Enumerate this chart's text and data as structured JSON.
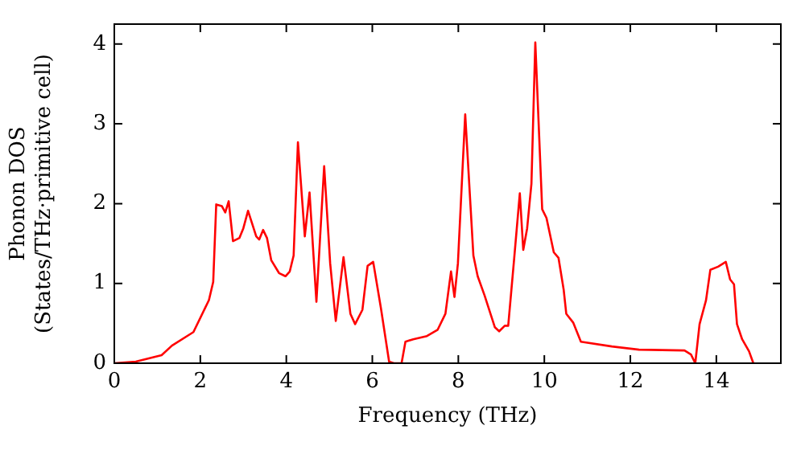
{
  "chart_data": {
    "type": "line",
    "xlabel": "Frequency (THz)",
    "ylabel": "Phonon DOS\n(States/THz·primitive cell)",
    "xlim": [
      0,
      15.5
    ],
    "ylim": [
      0,
      4.25
    ],
    "xticks": [
      0,
      2,
      4,
      6,
      8,
      10,
      12,
      14
    ],
    "yticks": [
      0,
      1,
      2,
      3,
      4
    ],
    "grid": false,
    "legend": false,
    "marker": "none",
    "line_style": "solid",
    "series": [
      {
        "color": "#ff0000",
        "x": [
          0,
          0.5,
          1.1,
          1.34,
          1.84,
          2.2,
          2.3,
          2.37,
          2.5,
          2.58,
          2.66,
          2.76,
          2.91,
          3.0,
          3.11,
          3.3,
          3.37,
          3.46,
          3.55,
          3.65,
          3.83,
          3.98,
          4.08,
          4.17,
          4.27,
          4.43,
          4.54,
          4.7,
          4.88,
          5.02,
          5.15,
          5.33,
          5.49,
          5.6,
          5.77,
          5.89,
          6.02,
          6.2,
          6.39,
          6.5,
          6.68,
          6.77,
          6.95,
          7.27,
          7.52,
          7.7,
          7.83,
          7.91,
          7.99,
          8.16,
          8.35,
          8.45,
          8.61,
          8.85,
          8.95,
          9.08,
          9.16,
          9.3,
          9.43,
          9.51,
          9.6,
          9.7,
          9.79,
          9.95,
          10.05,
          10.22,
          10.33,
          10.45,
          10.51,
          10.67,
          10.85,
          11.57,
          12.2,
          13.26,
          13.41,
          13.51,
          13.61,
          13.76,
          13.86,
          14.04,
          14.22,
          14.32,
          14.41,
          14.48,
          14.6,
          14.76,
          14.86
        ],
        "values": [
          0,
          0.02,
          0.1,
          0.22,
          0.39,
          0.79,
          1.02,
          1.99,
          1.97,
          1.89,
          2.03,
          1.53,
          1.57,
          1.69,
          1.91,
          1.59,
          1.55,
          1.67,
          1.57,
          1.29,
          1.13,
          1.09,
          1.15,
          1.35,
          2.77,
          1.59,
          2.14,
          0.77,
          2.47,
          1.25,
          0.53,
          1.33,
          0.62,
          0.49,
          0.67,
          1.22,
          1.27,
          0.69,
          0.02,
          0,
          0,
          0.27,
          0.3,
          0.34,
          0.42,
          0.62,
          1.15,
          0.83,
          1.25,
          3.12,
          1.35,
          1.09,
          0.85,
          0.45,
          0.4,
          0.47,
          0.47,
          1.32,
          2.13,
          1.42,
          1.69,
          2.25,
          4.02,
          1.93,
          1.82,
          1.39,
          1.32,
          0.92,
          0.62,
          0.51,
          0.27,
          0.21,
          0.17,
          0.16,
          0.11,
          0,
          0.49,
          0.79,
          1.17,
          1.21,
          1.27,
          1.05,
          0.99,
          0.49,
          0.3,
          0.15,
          0
        ]
      }
    ]
  }
}
